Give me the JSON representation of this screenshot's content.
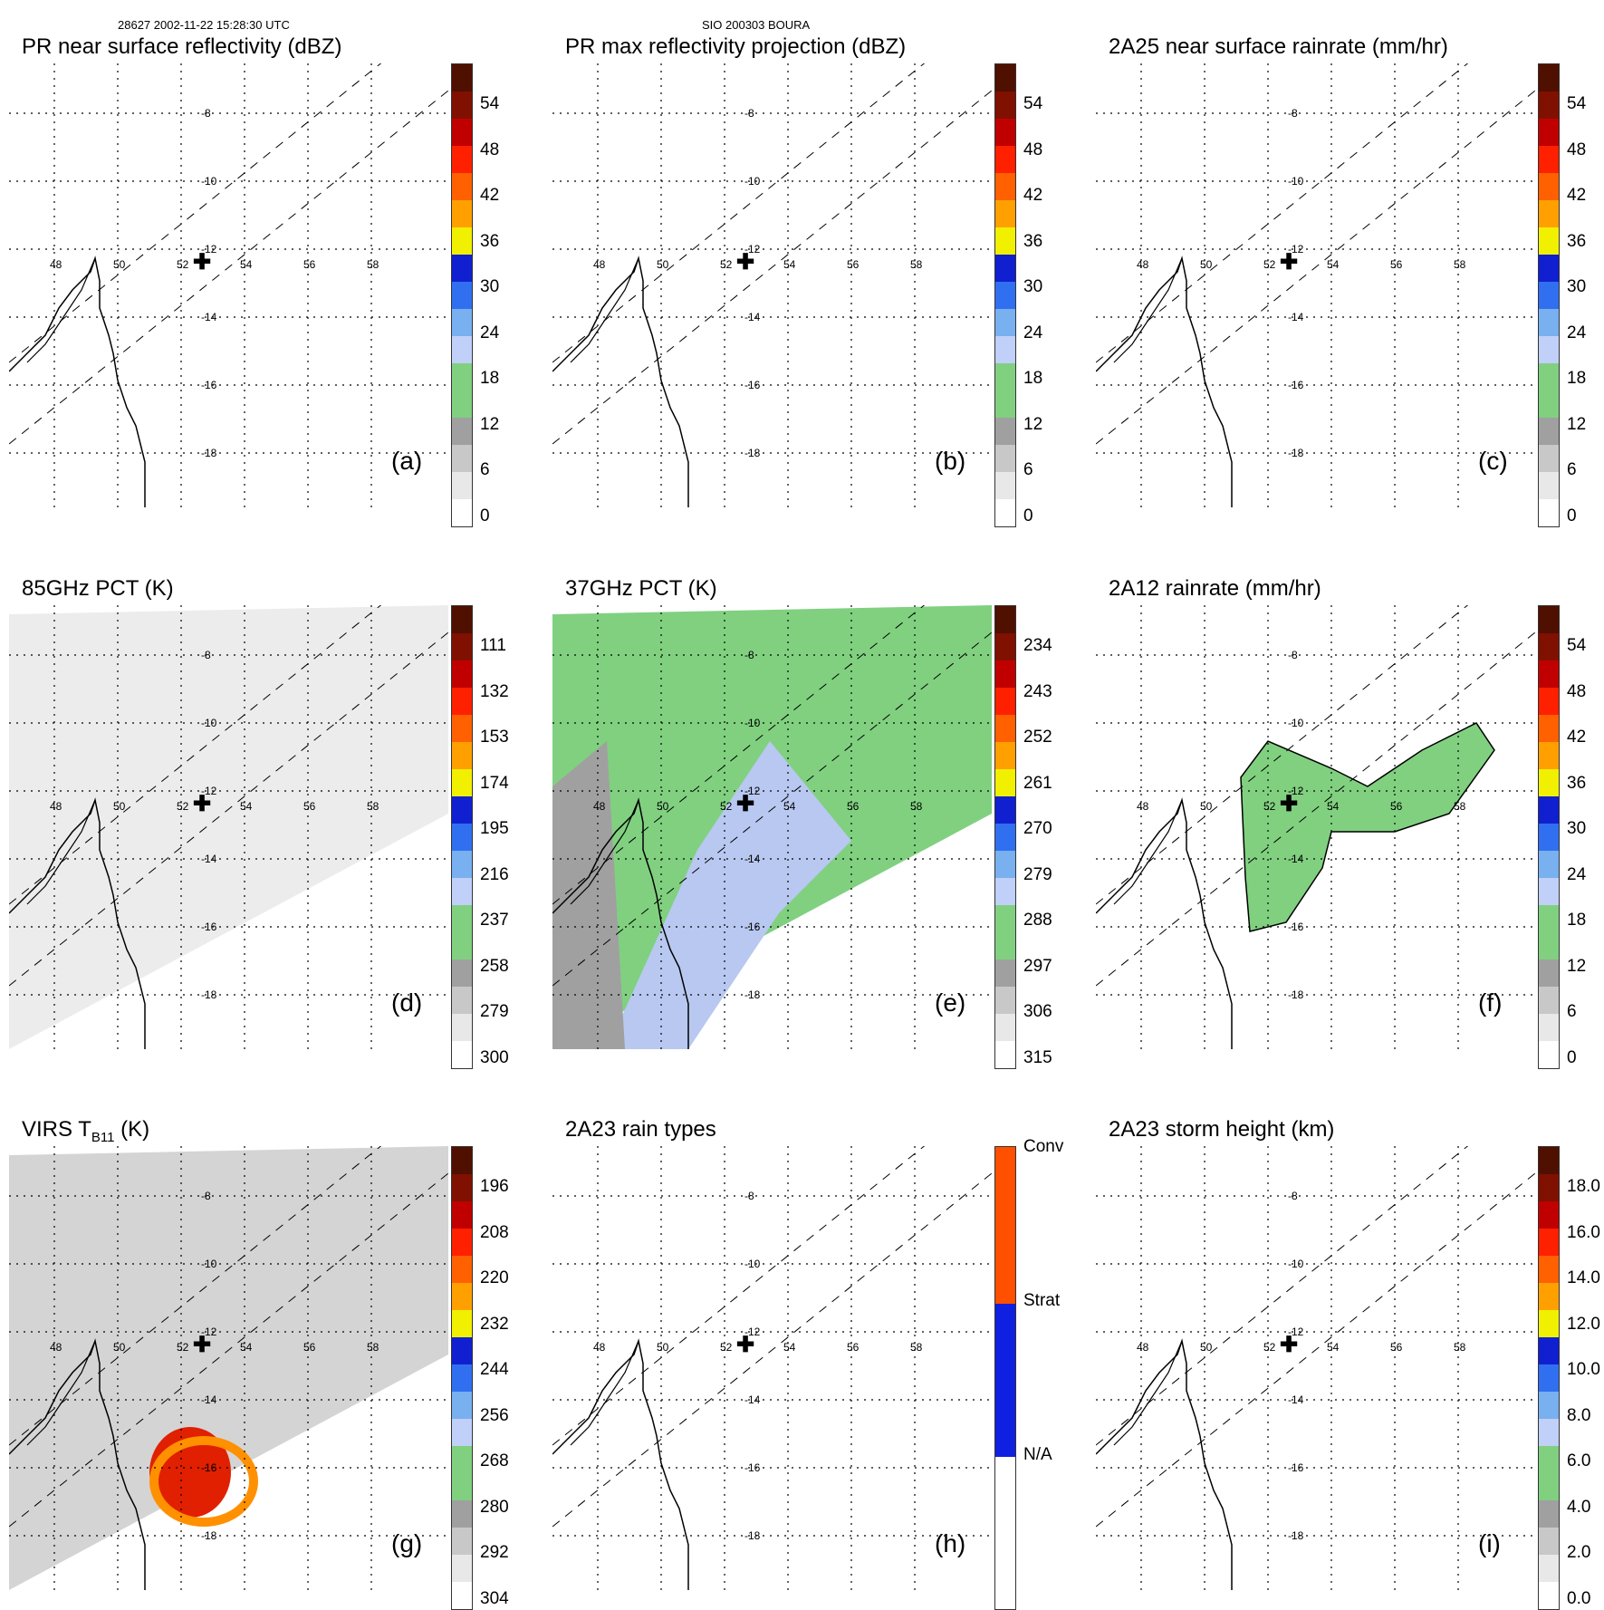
{
  "header": {
    "left": "28627 2002-11-22 15:28:30 UTC",
    "center": "SIO 200303 BOURA"
  },
  "panels": [
    {
      "id": "a",
      "title": "PR near surface reflectivity (dBZ)",
      "letter": "(a)",
      "ticks": [
        "54",
        "48",
        "42",
        "36",
        "30",
        "24",
        "18",
        "12",
        "6",
        "0"
      ],
      "lon_labels": [
        "48",
        "50",
        "52",
        "54",
        "56",
        "58"
      ],
      "lat_labels": [
        "-8",
        "-10",
        "-12",
        "-14",
        "-16",
        "-18"
      ]
    },
    {
      "id": "b",
      "title": "PR max reflectivity projection (dBZ)",
      "letter": "(b)",
      "ticks": [
        "54",
        "48",
        "42",
        "36",
        "30",
        "24",
        "18",
        "12",
        "6",
        "0"
      ],
      "lon_labels": [
        "48",
        "50",
        "52",
        "54",
        "56",
        "58"
      ],
      "lat_labels": [
        "-8",
        "-10",
        "-12",
        "-14",
        "-16",
        "-18"
      ]
    },
    {
      "id": "c",
      "title": "2A25 near surface rainrate (mm/hr)",
      "letter": "(c)",
      "ticks": [
        "54",
        "48",
        "42",
        "36",
        "30",
        "24",
        "18",
        "12",
        "6",
        "0"
      ],
      "lon_labels": [
        "48",
        "50",
        "52",
        "54",
        "56",
        "58"
      ],
      "lat_labels": [
        "-8",
        "-10",
        "-12",
        "-14",
        "-16",
        "-18"
      ]
    },
    {
      "id": "d",
      "title": "85GHz PCT (K)",
      "letter": "(d)",
      "ticks": [
        "111",
        "132",
        "153",
        "174",
        "195",
        "216",
        "237",
        "258",
        "279",
        "300"
      ],
      "lon_labels": [
        "48",
        "50",
        "52",
        "54",
        "56",
        "58"
      ],
      "lat_labels": [
        "-8",
        "-10",
        "-12",
        "-14",
        "-16",
        "-18"
      ]
    },
    {
      "id": "e",
      "title": "37GHz PCT (K)",
      "letter": "(e)",
      "ticks": [
        "234",
        "243",
        "252",
        "261",
        "270",
        "279",
        "288",
        "297",
        "306",
        "315"
      ],
      "lon_labels": [
        "48",
        "50",
        "52",
        "54",
        "56",
        "58"
      ],
      "lat_labels": [
        "-8",
        "-10",
        "-12",
        "-14",
        "-16",
        "-18"
      ]
    },
    {
      "id": "f",
      "title": "2A12 rainrate (mm/hr)",
      "letter": "(f)",
      "ticks": [
        "54",
        "48",
        "42",
        "36",
        "30",
        "24",
        "18",
        "12",
        "6",
        "0"
      ],
      "lon_labels": [
        "48",
        "50",
        "52",
        "54",
        "56",
        "58"
      ],
      "lat_labels": [
        "-8",
        "-10",
        "-12",
        "-14",
        "-16",
        "-18"
      ]
    },
    {
      "id": "g",
      "title": "VIRS T",
      "title_sub": "B11",
      "title_tail": " (K)",
      "letter": "(g)",
      "ticks": [
        "196",
        "208",
        "220",
        "232",
        "244",
        "256",
        "268",
        "280",
        "292",
        "304"
      ],
      "lon_labels": [
        "48",
        "50",
        "52",
        "54",
        "56",
        "58"
      ],
      "lat_labels": [
        "-8",
        "-10",
        "-12",
        "-14",
        "-16",
        "-18"
      ]
    },
    {
      "id": "h",
      "title": "2A23 rain types",
      "letter": "(h)",
      "ticks": [
        "Conv",
        "Strat",
        "N/A"
      ],
      "lon_labels": [
        "48",
        "50",
        "52",
        "54",
        "56",
        "58"
      ],
      "lat_labels": [
        "-8",
        "-10",
        "-12",
        "-14",
        "-16",
        "-18"
      ]
    },
    {
      "id": "i",
      "title": "2A23 storm height (km)",
      "letter": "(i)",
      "ticks": [
        "18.0",
        "16.0",
        "14.0",
        "12.0",
        "10.0",
        "8.0",
        "6.0",
        "4.0",
        "2.0",
        "0.0"
      ],
      "lon_labels": [
        "48",
        "50",
        "52",
        "54",
        "56",
        "58"
      ],
      "lat_labels": [
        "-8",
        "-10",
        "-12",
        "-14",
        "-16",
        "-18"
      ]
    }
  ],
  "colors": {
    "scale": [
      "#f4f4f4",
      "#d8d8d8",
      "#a0a0a0",
      "#80d080",
      "#b8c8f0",
      "#60a0f0",
      "#1030e0",
      "#f0e000",
      "#ff9000",
      "#ff5000",
      "#e01000",
      "#700000"
    ],
    "rain_types": [
      "#ff5000",
      "#1020e0",
      "#ffffff"
    ]
  }
}
